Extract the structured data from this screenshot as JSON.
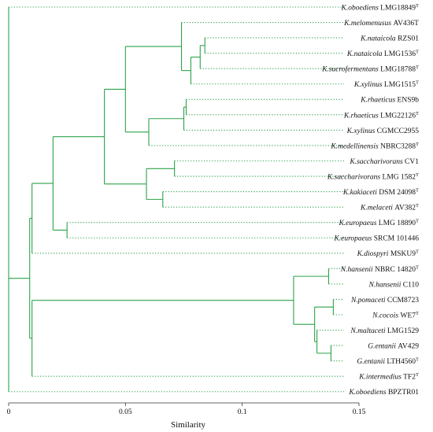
{
  "colors": {
    "branch": "#2ca24a",
    "axis": "#333333",
    "text": "#111111"
  },
  "axis": {
    "title": "Similarity",
    "ticks": [
      {
        "value": 0,
        "label": "0"
      },
      {
        "value": 0.05,
        "label": "0.05"
      },
      {
        "value": 0.1,
        "label": "0.1"
      },
      {
        "value": 0.15,
        "label": "0.15"
      }
    ]
  },
  "leaves": [
    {
      "genus": "K.",
      "species": "oboediens",
      "strain": "LMG18849",
      "sup": "T"
    },
    {
      "genus": "K.",
      "species": "melomenusus",
      "strain": "AV436T",
      "sup": ""
    },
    {
      "genus": "K.",
      "species": "nataicola",
      "strain": "RZS01",
      "sup": ""
    },
    {
      "genus": "K.",
      "species": "nataicola",
      "strain": "LMG1536",
      "sup": "T"
    },
    {
      "genus": "K.",
      "species": "sucrofermentans",
      "strain": "LMG18788",
      "sup": "T"
    },
    {
      "genus": "K.",
      "species": "xylinus",
      "strain": "LMG1515",
      "sup": "T"
    },
    {
      "genus": "K.",
      "species": "rhaeticus",
      "strain": "ENS9b",
      "sup": ""
    },
    {
      "genus": "K.",
      "species": "rhaeticus",
      "strain": "LMG22126",
      "sup": "T"
    },
    {
      "genus": "K.",
      "species": "xylinus",
      "strain": "CGMCC2955",
      "sup": ""
    },
    {
      "genus": "K.",
      "species": "medellinensis",
      "strain": "NBRC3288",
      "sup": "T"
    },
    {
      "genus": "K.",
      "species": "saccharivorans",
      "strain": "CV1",
      "sup": ""
    },
    {
      "genus": "K.",
      "species": "saccharivorans",
      "strain": "LMG 1582",
      "sup": "T"
    },
    {
      "genus": "K.",
      "species": "kakiaceti",
      "strain": "DSM 24098",
      "sup": "T"
    },
    {
      "genus": "K.",
      "species": "melaceti",
      "strain": "AV382",
      "sup": "T"
    },
    {
      "genus": "K.",
      "species": "europaeus",
      "strain": "LMG 18890",
      "sup": "T"
    },
    {
      "genus": "K.",
      "species": "europaeus",
      "strain": "SRCM 101446",
      "sup": ""
    },
    {
      "genus": "K.",
      "species": "diospyri",
      "strain": "MSKU9",
      "sup": "T"
    },
    {
      "genus": "N.",
      "species": "hansenii",
      "strain": "NBRC 14820",
      "sup": "T"
    },
    {
      "genus": "N.",
      "species": "hansenii",
      "strain": "C110",
      "sup": ""
    },
    {
      "genus": "N.",
      "species": "pomaceti",
      "strain": "CCM8723",
      "sup": ""
    },
    {
      "genus": "N.",
      "species": "cocois",
      "strain": "WE7",
      "sup": "T"
    },
    {
      "genus": "N.",
      "species": "maltaceti",
      "strain": "LMG1529",
      "sup": ""
    },
    {
      "genus": "G.",
      "species": "entanii",
      "strain": "AV429",
      "sup": ""
    },
    {
      "genus": "G.",
      "species": "entanii",
      "strain": "LTH4560",
      "sup": "T"
    },
    {
      "genus": "K.",
      "species": "intermedius",
      "strain": "TF2",
      "sup": "T"
    },
    {
      "genus": "K.",
      "species": "oboediens",
      "strain": "BPZTR01",
      "sup": ""
    }
  ],
  "tree": {
    "h": 0,
    "children": [
      {
        "leaf": 0
      },
      {
        "h": 0.009,
        "children": [
          {
            "h": 0.01,
            "children": [
              {
                "h": 0.019,
                "children": [
                  {
                    "h": 0.041,
                    "children": [
                      {
                        "h": 0.05,
                        "children": [
                          {
                            "h": 0.074,
                            "children": [
                              {
                                "leaf": 1
                              },
                              {
                                "h": 0.078,
                                "children": [
                                  {
                                    "h": 0.082,
                                    "children": [
                                      {
                                        "h": 0.084,
                                        "children": [
                                          {
                                            "leaf": 2
                                          },
                                          {
                                            "leaf": 3
                                          }
                                        ]
                                      },
                                      {
                                        "leaf": 4
                                      }
                                    ]
                                  },
                                  {
                                    "leaf": 5
                                  }
                                ]
                              }
                            ]
                          },
                          {
                            "h": 0.06,
                            "children": [
                              {
                                "h": 0.075,
                                "children": [
                                  {
                                    "h": 0.076,
                                    "children": [
                                      {
                                        "leaf": 6
                                      },
                                      {
                                        "leaf": 7
                                      }
                                    ]
                                  },
                                  {
                                    "leaf": 8
                                  }
                                ]
                              },
                              {
                                "leaf": 9
                              }
                            ]
                          }
                        ]
                      },
                      {
                        "h": 0.059,
                        "children": [
                          {
                            "h": 0.071,
                            "children": [
                              {
                                "leaf": 10
                              },
                              {
                                "leaf": 11
                              }
                            ]
                          },
                          {
                            "h": 0.066,
                            "children": [
                              {
                                "leaf": 12
                              },
                              {
                                "leaf": 13
                              }
                            ]
                          }
                        ]
                      }
                    ]
                  },
                  {
                    "h": 0.025,
                    "children": [
                      {
                        "leaf": 14
                      },
                      {
                        "leaf": 15
                      }
                    ]
                  }
                ]
              },
              {
                "leaf": 16
              }
            ]
          },
          {
            "h": 0.01,
            "children": [
              {
                "h": 0.122,
                "children": [
                  {
                    "h": 0.137,
                    "children": [
                      {
                        "leaf": 17
                      },
                      {
                        "leaf": 18
                      }
                    ]
                  },
                  {
                    "h": 0.131,
                    "children": [
                      {
                        "h": 0.139,
                        "children": [
                          {
                            "leaf": 19
                          },
                          {
                            "leaf": 20
                          }
                        ]
                      },
                      {
                        "h": 0.132,
                        "children": [
                          {
                            "leaf": 21
                          },
                          {
                            "h": 0.138,
                            "children": [
                              {
                                "leaf": 22
                              },
                              {
                                "leaf": 23
                              }
                            ]
                          }
                        ]
                      }
                    ]
                  }
                ]
              },
              {
                "leaf": 24
              }
            ]
          }
        ]
      },
      {
        "leaf": 25
      }
    ]
  }
}
